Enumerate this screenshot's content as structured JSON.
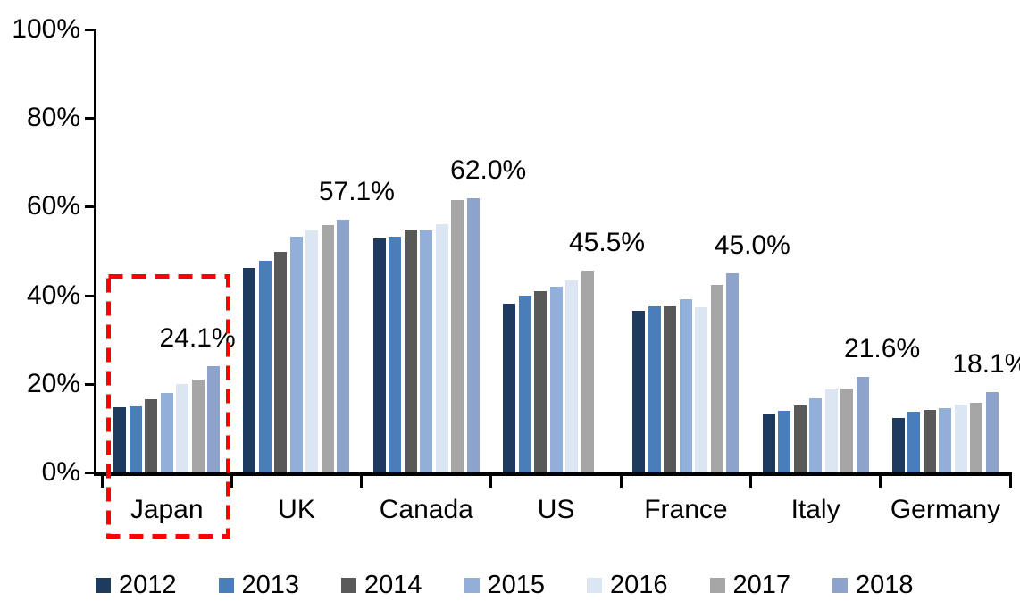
{
  "chart_data": {
    "type": "bar",
    "title": "",
    "categories": [
      "Japan",
      "UK",
      "Canada",
      "US",
      "France",
      "Italy",
      "Germany"
    ],
    "series": [
      {
        "name": "2012",
        "color": "#1E3A5F",
        "values": [
          14.7,
          46.2,
          52.9,
          38.1,
          36.5,
          13.1,
          12.4
        ]
      },
      {
        "name": "2013",
        "color": "#4A7EBB",
        "values": [
          15.0,
          47.7,
          53.3,
          39.9,
          37.6,
          14.0,
          13.8
        ]
      },
      {
        "name": "2014",
        "color": "#595959",
        "values": [
          16.5,
          49.8,
          54.9,
          41.0,
          37.5,
          15.2,
          14.1
        ]
      },
      {
        "name": "2015",
        "color": "#92AFD9",
        "values": [
          18.0,
          53.2,
          54.6,
          42.0,
          39.2,
          16.7,
          14.6
        ]
      },
      {
        "name": "2016",
        "color": "#DCE6F2",
        "values": [
          19.9,
          54.6,
          56.1,
          43.4,
          37.3,
          18.8,
          15.3
        ]
      },
      {
        "name": "2017",
        "color": "#A6A6A6",
        "values": [
          21.0,
          55.8,
          61.6,
          45.5,
          42.3,
          19.0,
          15.7
        ]
      },
      {
        "name": "2018",
        "color": "#8EA3CC",
        "values": [
          24.1,
          57.1,
          62.0,
          null,
          45.0,
          21.6,
          18.1
        ]
      }
    ],
    "peak_labels": [
      "24.1%",
      "57.1%",
      "62.0%",
      "45.5%",
      "45.0%",
      "21.6%",
      "18.1%"
    ],
    "y_axis": {
      "ticks": [
        100,
        80,
        60,
        40,
        20,
        0
      ],
      "labels": [
        "100%",
        "80%",
        "60%",
        "40%",
        "20%",
        "0%"
      ],
      "ylim": [
        0,
        100
      ]
    },
    "legend": {
      "position": "bottom",
      "entries": [
        "2012",
        "2013",
        "2014",
        "2015",
        "2016",
        "2017",
        "2018"
      ]
    },
    "annotations": [
      {
        "type": "dashed-box",
        "target": "Japan",
        "color": "#FF0000"
      }
    ],
    "grid": false,
    "background": "#FFFFFF",
    "axis_color": "#000000"
  }
}
